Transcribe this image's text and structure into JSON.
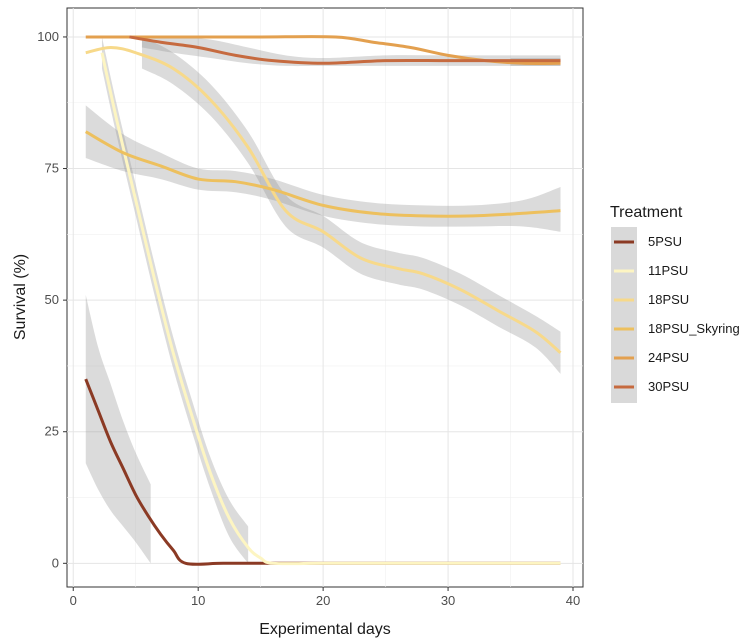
{
  "chart_data": {
    "type": "line",
    "xlabel": "Experimental days",
    "ylabel": "Survival (%)",
    "xlim": [
      -0.5,
      40.8
    ],
    "ylim": [
      -4.5,
      105.5
    ],
    "x_ticks": [
      0,
      10,
      20,
      30,
      40
    ],
    "y_ticks": [
      0,
      25,
      50,
      75,
      100
    ],
    "grid": true,
    "legend": {
      "title": "Treatment",
      "position": "right"
    },
    "series": [
      {
        "name": "5PSU",
        "color": "#8B3A24",
        "x": [
          1,
          2,
          3,
          4,
          5,
          6,
          7,
          8,
          9,
          12,
          16,
          20,
          25,
          30,
          35,
          39
        ],
        "y": [
          35,
          29,
          23,
          18,
          13,
          9,
          5.5,
          2.5,
          0,
          0,
          0,
          0,
          0,
          0,
          0,
          0
        ],
        "ci_x": [
          1,
          2,
          3,
          4,
          5,
          6.2
        ],
        "ci_lower": [
          19,
          14,
          10,
          7,
          4,
          0
        ],
        "ci_upper": [
          51,
          41,
          34,
          27,
          21,
          15
        ]
      },
      {
        "name": "11PSU",
        "color": "#FDF5C2",
        "x": [
          2.3,
          3.5,
          5,
          6.5,
          8,
          9.5,
          11,
          12.5,
          14,
          15,
          16,
          20,
          25,
          30,
          35,
          39
        ],
        "y": [
          97,
          84,
          69,
          54,
          40,
          28,
          17,
          8.5,
          3,
          1,
          0,
          0,
          0,
          0,
          0,
          0
        ],
        "ci_x": [
          2.3,
          3.5,
          5,
          6.5,
          8,
          9.5,
          11,
          12.5,
          14
        ],
        "ci_lower": [
          94,
          81,
          66,
          51,
          37,
          25,
          14,
          5,
          0
        ],
        "ci_upper": [
          100,
          87,
          72,
          57,
          43,
          31,
          20,
          12,
          7
        ]
      },
      {
        "name": "18PSU",
        "color": "#F7D98A",
        "x": [
          1,
          3,
          5,
          8,
          11,
          14,
          17,
          20,
          23,
          26,
          28,
          31,
          34,
          37,
          39
        ],
        "y": [
          97,
          98,
          97,
          94,
          88,
          79,
          67,
          63,
          58,
          56,
          55,
          52,
          48,
          44,
          40
        ],
        "ci_x": [
          5.5,
          8,
          11,
          14,
          17,
          20,
          23,
          26,
          28,
          31,
          34,
          37,
          39
        ],
        "ci_lower": [
          94,
          91,
          85,
          76,
          64,
          60,
          55,
          53,
          52,
          49,
          45,
          41,
          36
        ],
        "ci_upper": [
          100,
          97,
          91,
          82,
          70,
          66,
          61,
          59,
          58,
          55,
          51,
          47,
          44
        ]
      },
      {
        "name": "18PSU_Skyring",
        "color": "#EDC05E",
        "x": [
          1,
          4,
          7,
          10,
          13,
          16,
          20,
          24,
          28,
          32,
          36,
          39
        ],
        "y": [
          82,
          78,
          75.5,
          73,
          72.5,
          71,
          68,
          66.5,
          66,
          66,
          66.5,
          67
        ],
        "ci_lower": [
          77,
          74.5,
          73,
          71,
          70.5,
          69,
          66,
          64.5,
          64,
          64,
          64,
          63
        ],
        "ci_upper": [
          87,
          81.5,
          78,
          75,
          74.5,
          73,
          70,
          68.5,
          68,
          68,
          69,
          71.5
        ]
      },
      {
        "name": "24PSU",
        "color": "#E3A04F",
        "x": [
          1,
          5,
          10,
          15,
          21,
          24,
          27,
          30,
          33,
          36,
          39
        ],
        "y": [
          100,
          100,
          100,
          100,
          100,
          99,
          98,
          96.5,
          95.5,
          95,
          95
        ],
        "ci_x": [
          35,
          39
        ],
        "ci_lower": [
          94.5,
          94.5
        ],
        "ci_upper": [
          96,
          96
        ]
      },
      {
        "name": "30PSU",
        "color": "#C66A3F",
        "x": [
          4.5,
          7,
          10,
          13,
          16,
          20,
          25,
          30,
          35,
          39
        ],
        "y": [
          100,
          99,
          98,
          96.5,
          95.5,
          95,
          95.5,
          95.5,
          95.5,
          95.5
        ],
        "ci_x": [
          5.5,
          8,
          11,
          14,
          17,
          20,
          25,
          30,
          35,
          39
        ],
        "ci_lower": [
          98,
          97,
          96,
          95,
          94.5,
          94.5,
          94.5,
          94.5,
          94.5,
          94.5
        ],
        "ci_upper": [
          100,
          100,
          99.5,
          98,
          96.5,
          96,
          96.5,
          96.5,
          96.5,
          96.5
        ]
      }
    ]
  }
}
